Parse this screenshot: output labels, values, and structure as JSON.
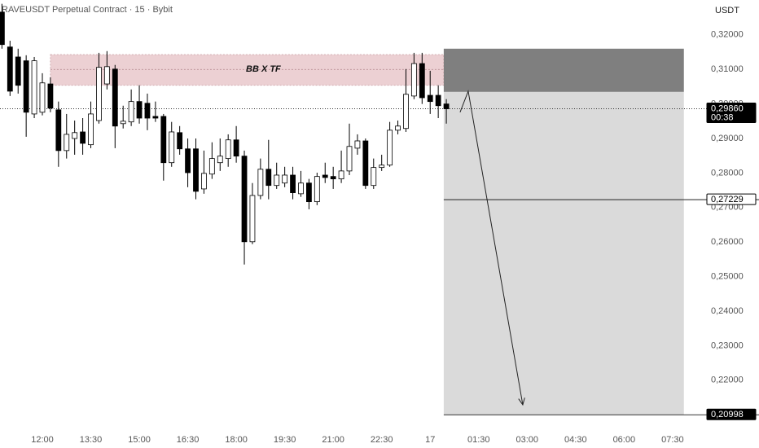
{
  "chart_data": {
    "type": "candlestick",
    "title": "RAVEUSDT Perpetual Contract · 15 · Bybit",
    "y_unit": "USDT",
    "x": [
      10.75,
      11,
      11.25,
      11.5,
      11.75,
      12,
      12.25,
      12.5,
      12.75,
      13,
      13.25,
      13.5,
      13.75,
      14,
      14.25,
      14.5,
      14.75,
      15,
      15.25,
      15.5,
      15.75,
      16,
      16.25,
      16.5,
      16.75,
      17,
      17.25,
      17.5,
      17.75,
      18,
      18.25,
      18.5,
      18.75,
      19,
      19.25,
      19.5,
      19.75,
      20,
      20.25,
      20.5,
      20.75,
      21,
      21.25,
      21.5,
      21.75,
      22,
      22.25,
      22.5,
      22.75,
      23,
      23.25,
      23.5,
      23.75,
      24,
      24.25,
      24.5
    ],
    "open": [
      0.3266,
      0.3165,
      0.3136,
      0.3125,
      0.2971,
      0.2976,
      0.3058,
      0.2983,
      0.2865,
      0.29,
      0.2919,
      0.2882,
      0.2952,
      0.3058,
      0.3101,
      0.2943,
      0.2948,
      0.3007,
      0.3002,
      0.2964,
      0.2964,
      0.283,
      0.2917,
      0.287,
      0.287,
      0.2754,
      0.2797,
      0.283,
      0.2842,
      0.2896,
      0.2849,
      0.2601,
      0.2735,
      0.2811,
      0.2764,
      0.2771,
      0.2794,
      0.274,
      0.2771,
      0.2717,
      0.2794,
      0.279,
      0.2783,
      0.2806,
      0.2872,
      0.2893,
      0.2764,
      0.2816,
      0.2823,
      0.2924,
      0.2929,
      0.3023,
      0.3117,
      0.3025,
      0.3025,
      0.3
    ],
    "high": [
      0.329,
      0.3183,
      0.316,
      0.3141,
      0.3136,
      0.3089,
      0.3077,
      0.3007,
      0.2971,
      0.2952,
      0.2959,
      0.3007,
      0.3148,
      0.3153,
      0.3113,
      0.2995,
      0.3042,
      0.3054,
      0.303,
      0.3007,
      0.2971,
      0.2948,
      0.2936,
      0.29,
      0.29,
      0.2865,
      0.2889,
      0.29,
      0.2912,
      0.2936,
      0.2865,
      0.2771,
      0.2842,
      0.2896,
      0.283,
      0.2818,
      0.2818,
      0.2806,
      0.2783,
      0.2801,
      0.283,
      0.2818,
      0.2865,
      0.2943,
      0.2912,
      0.29,
      0.2842,
      0.2853,
      0.2948,
      0.2952,
      0.3101,
      0.3148,
      0.3148,
      0.3096,
      0.3054,
      0.3014
    ],
    "low": [
      0.316,
      0.3023,
      0.303,
      0.2905,
      0.2959,
      0.2967,
      0.2976,
      0.2818,
      0.2842,
      0.2853,
      0.2853,
      0.2872,
      0.2943,
      0.3042,
      0.2872,
      0.2929,
      0.2936,
      0.2943,
      0.2924,
      0.2948,
      0.2778,
      0.2818,
      0.2853,
      0.2759,
      0.2724,
      0.274,
      0.2783,
      0.2806,
      0.2818,
      0.283,
      0.2535,
      0.2594,
      0.2724,
      0.2724,
      0.2754,
      0.2759,
      0.2724,
      0.2731,
      0.2695,
      0.2707,
      0.2771,
      0.2754,
      0.2771,
      0.2794,
      0.2853,
      0.2754,
      0.2754,
      0.2806,
      0.2818,
      0.2912,
      0.2919,
      0.3014,
      0.3,
      0.2971,
      0.2959,
      0.2943
    ],
    "close": [
      0.3172,
      0.3037,
      0.3054,
      0.2976,
      0.3125,
      0.3061,
      0.2988,
      0.2865,
      0.2912,
      0.2917,
      0.2886,
      0.2971,
      0.3106,
      0.3108,
      0.2936,
      0.295,
      0.3007,
      0.2959,
      0.2959,
      0.2959,
      0.283,
      0.2919,
      0.287,
      0.2801,
      0.2747,
      0.2799,
      0.2842,
      0.2849,
      0.2896,
      0.2849,
      0.2601,
      0.2735,
      0.2811,
      0.2764,
      0.2794,
      0.2794,
      0.2743,
      0.2771,
      0.2717,
      0.279,
      0.2787,
      0.2783,
      0.2806,
      0.2877,
      0.2893,
      0.2764,
      0.2816,
      0.2823,
      0.2924,
      0.2936,
      0.3028,
      0.3117,
      0.3018,
      0.3007,
      0.2995,
      0.2986
    ],
    "up_color": "#ffffff",
    "down_color": "#000000",
    "xlim": [
      10.69,
      32.36
    ],
    "xticks": [
      {
        "value": 12,
        "label": "12:00"
      },
      {
        "value": 13.5,
        "label": "13:30"
      },
      {
        "value": 15,
        "label": "15:00"
      },
      {
        "value": 16.5,
        "label": "16:30"
      },
      {
        "value": 18,
        "label": "18:00"
      },
      {
        "value": 19.5,
        "label": "19:30"
      },
      {
        "value": 21,
        "label": "21:00"
      },
      {
        "value": 22.5,
        "label": "22:30"
      },
      {
        "value": 24,
        "label": "17"
      },
      {
        "value": 25.5,
        "label": "01:30"
      },
      {
        "value": 27,
        "label": "03:00"
      },
      {
        "value": 28.5,
        "label": "04:30"
      },
      {
        "value": 30,
        "label": "06:00"
      },
      {
        "value": 31.5,
        "label": "07:30"
      }
    ],
    "ylim": [
      0.2051,
      0.3301
    ],
    "yticks": [
      {
        "value": 0.22,
        "label": "0,22000"
      },
      {
        "value": 0.23,
        "label": "0,23000"
      },
      {
        "value": 0.24,
        "label": "0,24000"
      },
      {
        "value": 0.25,
        "label": "0,25000"
      },
      {
        "value": 0.26,
        "label": "0,26000"
      },
      {
        "value": 0.27,
        "label": "0,27000"
      },
      {
        "value": 0.28,
        "label": "0,28000"
      },
      {
        "value": 0.29,
        "label": "0,29000"
      },
      {
        "value": 0.3,
        "label": "0,30000"
      },
      {
        "value": 0.31,
        "label": "0,31000"
      },
      {
        "value": 0.32,
        "label": "0,32000"
      }
    ],
    "zone": {
      "label": "BB X TF",
      "low": 0.3054,
      "high": 0.3143,
      "mid": 0.31,
      "start": 12.25,
      "end": 24.42,
      "color": "#ecd0d3"
    },
    "position": {
      "start": 24.42,
      "end": 31.85,
      "stop": 0.316,
      "entry": 0.3035,
      "stop_color": "#7f7f7f",
      "target_color": "#dadada",
      "target": {
        "value": 0.20998,
        "label": "0,20998"
      }
    },
    "hline": {
      "value": 0.27229,
      "label": "0,27229",
      "start": 24.42
    },
    "last_price": {
      "value": 0.2986,
      "label": "0,29860",
      "countdown": "00:38"
    },
    "arrow": {
      "x": [
        24.925,
        25.177,
        26.865
      ],
      "y": [
        0.2976,
        0.3037,
        0.2129
      ]
    }
  }
}
